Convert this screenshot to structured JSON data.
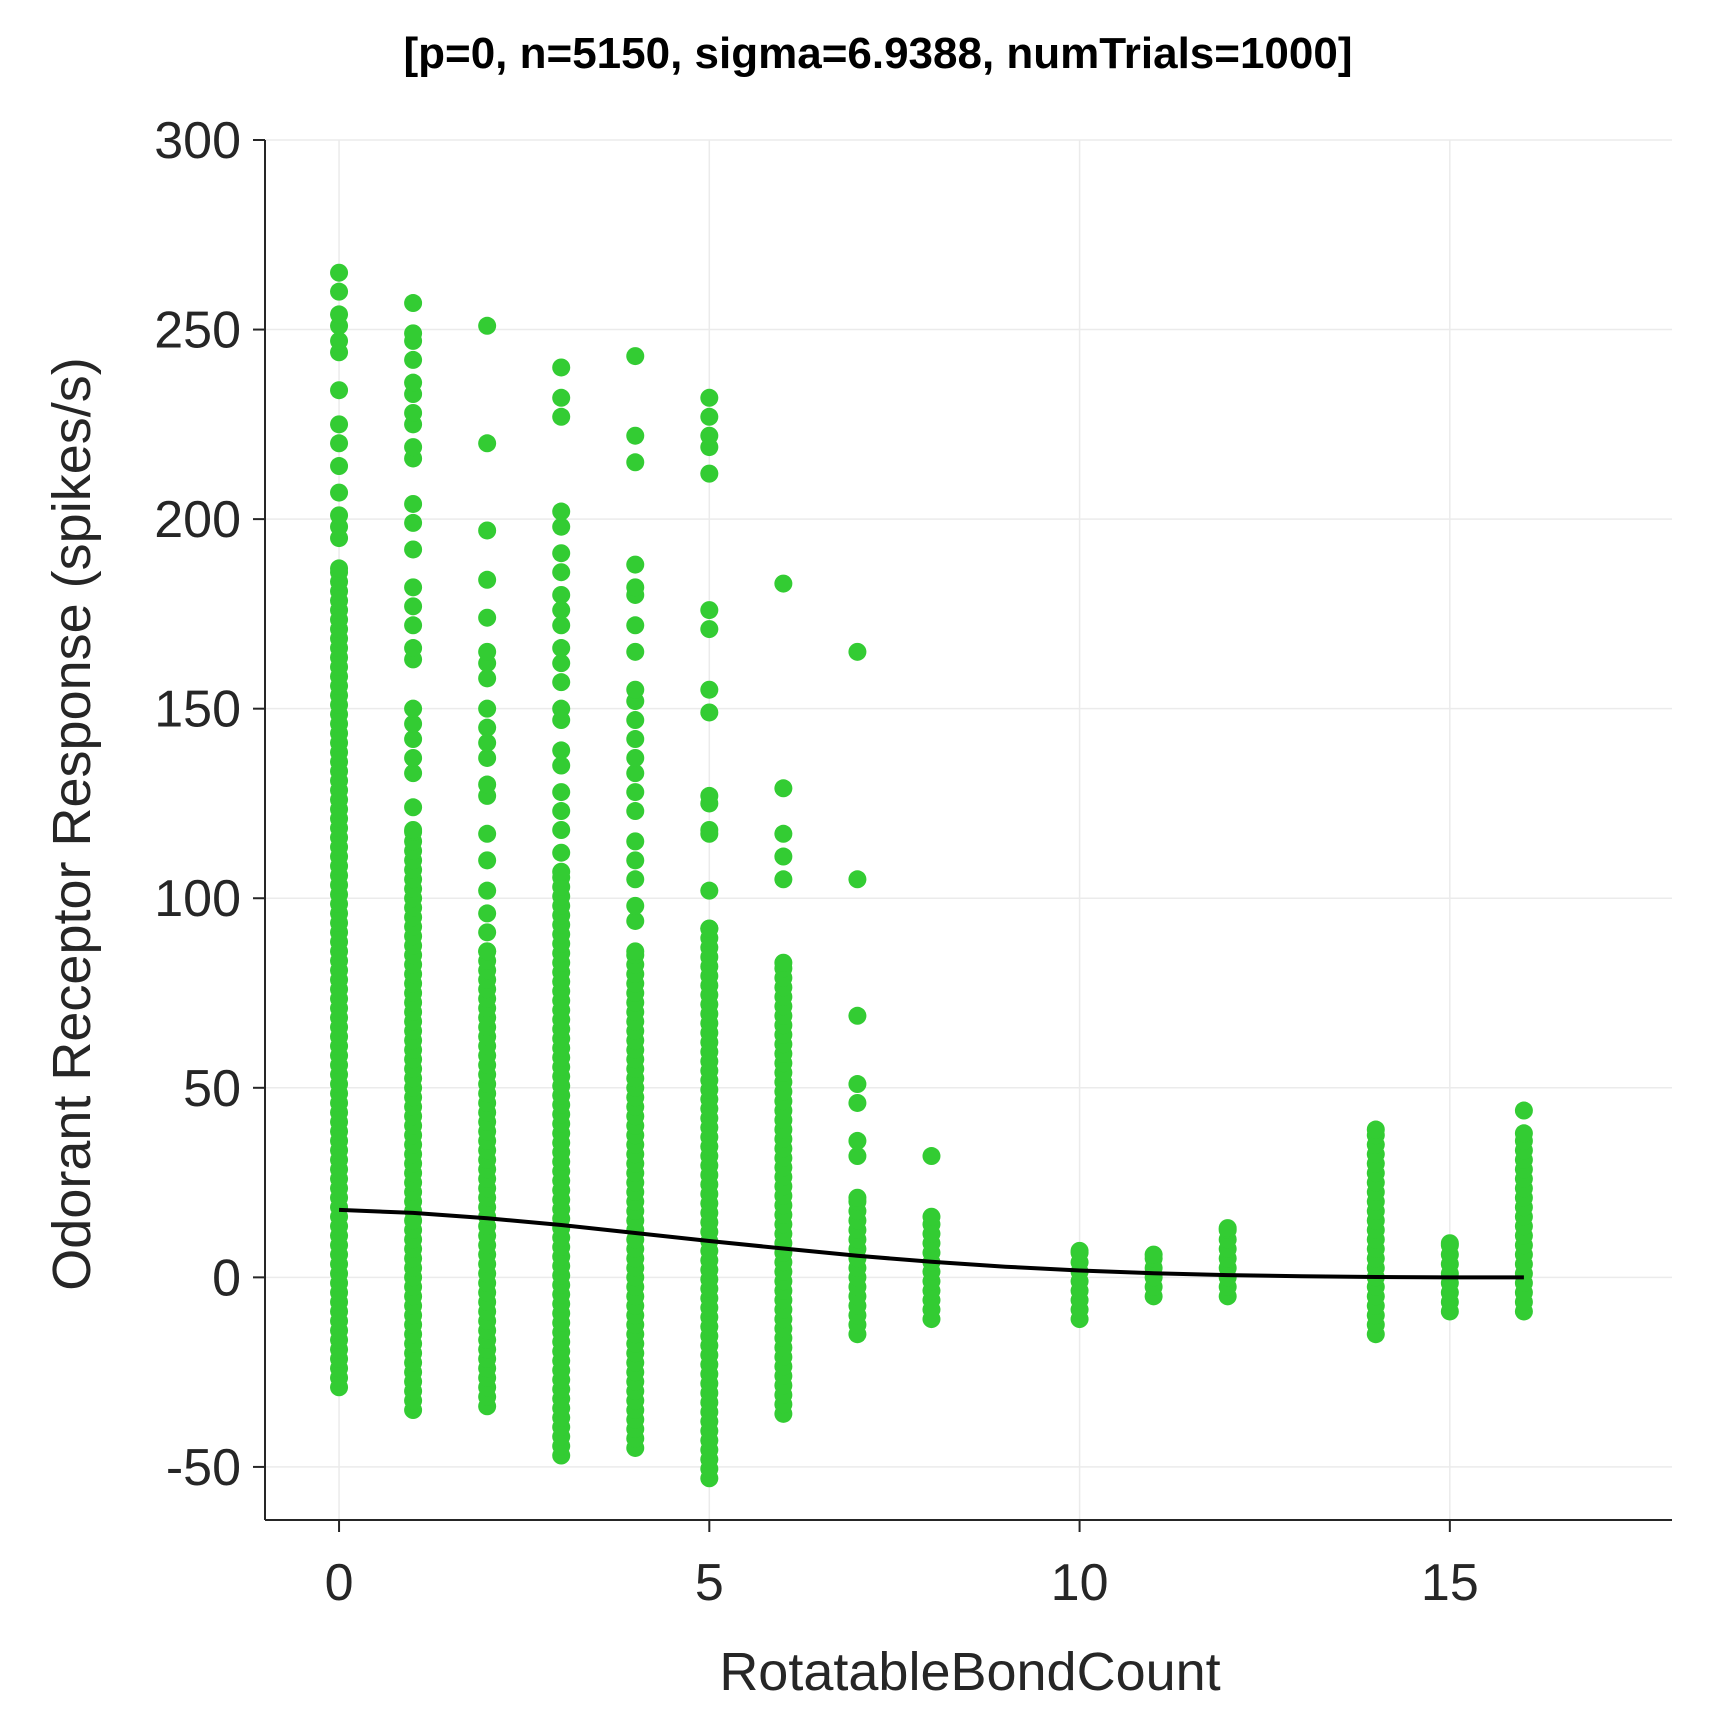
{
  "chart_data": {
    "type": "scatter",
    "title": "[p=0, n=5150, sigma=6.9388, numTrials=1000]",
    "xlabel": "RotatableBondCount",
    "ylabel": "Odorant Receptor Response (spikes/s)",
    "xlim": [
      -1,
      18
    ],
    "ylim": [
      -64,
      300
    ],
    "xticks": [
      0,
      5,
      10,
      15
    ],
    "yticks": [
      -50,
      0,
      50,
      100,
      150,
      200,
      250,
      300
    ],
    "grid": true,
    "point_color": "#33cc33",
    "line_color": "#000000",
    "series": [
      {
        "type": "scatter",
        "points": [
          {
            "x": 0,
            "ymin": -29,
            "ymax": 187,
            "extra": [
              195,
              198,
              201,
              207,
              214,
              220,
              225,
              234,
              244,
              247,
              251,
              254,
              260,
              265
            ]
          },
          {
            "x": 1,
            "ymin": -35,
            "ymax": 118,
            "extra": [
              124,
              133,
              137,
              142,
              146,
              150,
              163,
              166,
              172,
              177,
              182,
              192,
              199,
              204,
              216,
              219,
              225,
              228,
              233,
              236,
              242,
              247,
              249,
              257
            ]
          },
          {
            "x": 2,
            "ymin": -34,
            "ymax": 86,
            "extra": [
              91,
              96,
              102,
              110,
              117,
              127,
              130,
              137,
              141,
              145,
              150,
              158,
              162,
              165,
              174,
              184,
              197,
              220,
              251
            ]
          },
          {
            "x": 3,
            "ymin": -47,
            "ymax": 107,
            "extra": [
              112,
              118,
              123,
              128,
              135,
              139,
              147,
              150,
              157,
              162,
              166,
              172,
              176,
              180,
              186,
              191,
              198,
              202,
              227,
              232,
              240
            ]
          },
          {
            "x": 4,
            "ymin": -45,
            "ymax": 86,
            "extra": [
              94,
              98,
              105,
              110,
              115,
              123,
              128,
              133,
              137,
              142,
              147,
              152,
              155,
              165,
              172,
              180,
              182,
              188,
              215,
              222,
              243
            ]
          },
          {
            "x": 5,
            "ymin": -53,
            "ymax": 92,
            "extra": [
              102,
              117,
              118,
              125,
              127,
              149,
              155,
              171,
              176,
              212,
              219,
              222,
              227,
              232
            ]
          },
          {
            "x": 6,
            "ymin": -36,
            "ymax": 83,
            "extra": [
              105,
              111,
              117,
              129,
              183
            ]
          },
          {
            "x": 7,
            "ymin": -15,
            "ymax": 21,
            "extra": [
              32,
              36,
              46,
              51,
              69,
              105,
              165
            ]
          },
          {
            "x": 8,
            "ymin": -11,
            "ymax": 16,
            "extra": [
              32
            ]
          },
          {
            "x": 10,
            "ymin": -11,
            "ymax": 7,
            "extra": []
          },
          {
            "x": 11,
            "ymin": -5,
            "ymax": 6,
            "extra": []
          },
          {
            "x": 12,
            "ymin": -5,
            "ymax": 13,
            "extra": []
          },
          {
            "x": 14,
            "ymin": -15,
            "ymax": 39,
            "extra": []
          },
          {
            "x": 15,
            "ymin": -9,
            "ymax": 9,
            "extra": []
          },
          {
            "x": 16,
            "ymin": -9,
            "ymax": 38,
            "extra": [
              44
            ]
          }
        ]
      },
      {
        "type": "line",
        "x": [
          0,
          1,
          2,
          3,
          4,
          5,
          6,
          7,
          8,
          9,
          10,
          11,
          12,
          13,
          14,
          15,
          16
        ],
        "y": [
          17.8,
          17.0,
          15.6,
          13.8,
          11.7,
          9.6,
          7.6,
          5.7,
          4.1,
          2.8,
          1.8,
          1.1,
          0.6,
          0.3,
          0.1,
          0.0,
          0.0
        ]
      }
    ]
  }
}
